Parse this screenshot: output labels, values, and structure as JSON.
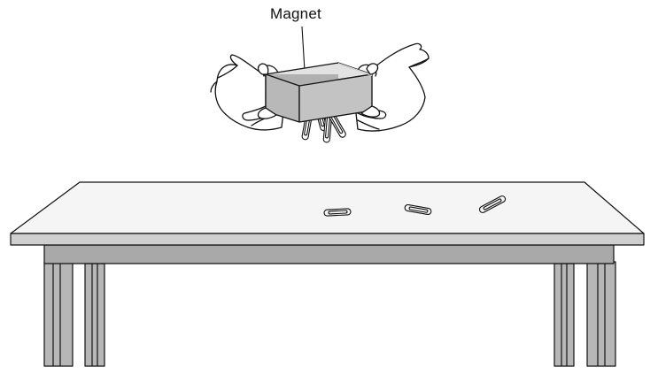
{
  "labels": {
    "magnet": "Magnet"
  },
  "colors": {
    "magnet_top": "#e2e2e2",
    "magnet_front": "#b0b0b0",
    "magnet_side": "#cfcfcf",
    "table_top": "#f5f5f5",
    "table_edge": "#cfcfcf",
    "table_apron": "#a9a9a9",
    "table_legs": "#b7b7b7",
    "outline": "#111111"
  },
  "scene": {
    "clips_on_magnet": 5,
    "clips_on_table": 3
  }
}
